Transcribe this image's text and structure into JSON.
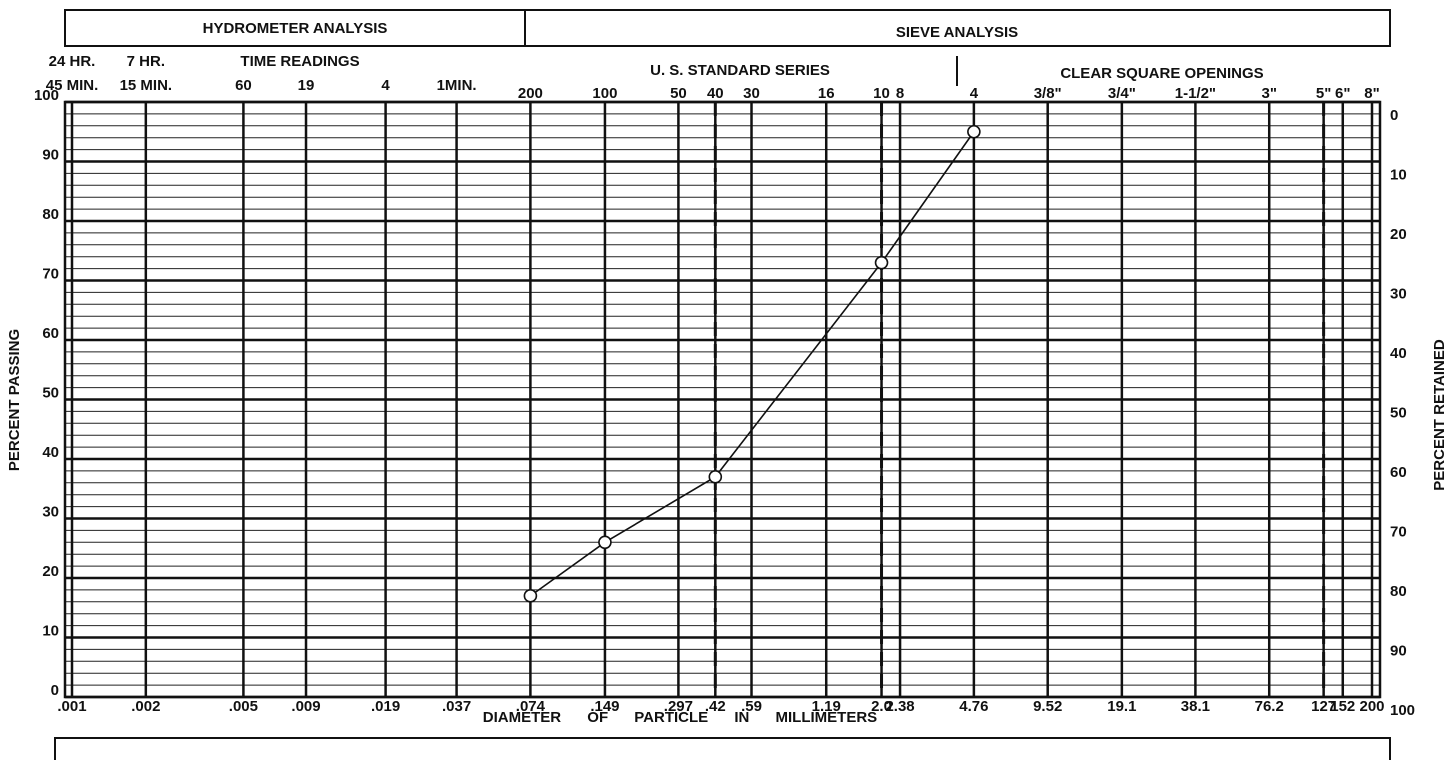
{
  "chart_data": {
    "type": "line",
    "header_left": "HYDROMETER ANALYSIS",
    "header_right": "SIEVE ANALYSIS",
    "time_readings_label": "TIME READINGS",
    "sieve_series_label": "U. S. STANDARD SERIES",
    "openings_label": "CLEAR SQUARE OPENINGS",
    "xlabel": "DIAMETER OF PARTICLE IN MILLIMETERS",
    "ylabel": "PERCENT PASSING",
    "y2label": "PERCENT RETAINED",
    "xscale": "log",
    "xlim": [
      0.001,
      200
    ],
    "xticks": [
      {
        "value": 0.001,
        "label": ".001"
      },
      {
        "value": 0.002,
        "label": ".002"
      },
      {
        "value": 0.005,
        "label": ".005"
      },
      {
        "value": 0.009,
        "label": ".009"
      },
      {
        "value": 0.019,
        "label": ".019"
      },
      {
        "value": 0.037,
        "label": ".037"
      },
      {
        "value": 0.074,
        "label": ".074"
      },
      {
        "value": 0.149,
        "label": ".149"
      },
      {
        "value": 0.297,
        "label": ".297"
      },
      {
        "value": 0.42,
        "label": ".42"
      },
      {
        "value": 0.59,
        "label": ".59"
      },
      1.19,
      {
        "value": 2,
        "label": "2.0"
      },
      2.38,
      4.76,
      9.52,
      19.1,
      38.1,
      76.2,
      127,
      152,
      200
    ],
    "time_ticks": [
      {
        "value": 0.001,
        "lines": [
          "24 HR.",
          "45 MIN."
        ]
      },
      {
        "value": 0.002,
        "lines": [
          "7 HR.",
          "15 MIN."
        ]
      },
      {
        "value": 0.005,
        "lines": [
          "60"
        ]
      },
      {
        "value": 0.009,
        "lines": [
          "19"
        ]
      },
      {
        "value": 0.019,
        "lines": [
          "4"
        ]
      },
      {
        "value": 0.037,
        "lines": [
          "1MIN."
        ]
      }
    ],
    "sieve_ticks": [
      {
        "value": 0.074,
        "label": "200"
      },
      {
        "value": 0.149,
        "label": "100"
      },
      {
        "value": 0.297,
        "label": "50"
      },
      {
        "value": 0.42,
        "label": "40"
      },
      {
        "value": 0.59,
        "label": "30"
      },
      {
        "value": 1.19,
        "label": "16"
      },
      {
        "value": 2,
        "label": "10"
      },
      {
        "value": 2.38,
        "label": "8"
      },
      {
        "value": 4.76,
        "label": "4"
      },
      {
        "value": 9.52,
        "label": "3/8\""
      },
      {
        "value": 19.1,
        "label": "3/4\""
      },
      {
        "value": 38.1,
        "label": "1-1/2\""
      },
      {
        "value": 76.2,
        "label": "3\""
      },
      {
        "value": 127,
        "label": "5\""
      },
      {
        "value": 152,
        "label": "6\""
      },
      {
        "value": 200,
        "label": "8\""
      }
    ],
    "reference_lines_x": [
      0.42,
      2,
      127
    ],
    "ylim": [
      0,
      100
    ],
    "yticks": [
      0,
      10,
      20,
      30,
      40,
      50,
      60,
      70,
      80,
      90,
      100
    ],
    "y2lim": [
      100,
      0
    ],
    "y2ticks": [
      0,
      10,
      20,
      30,
      40,
      50,
      60,
      70,
      80,
      90,
      100
    ],
    "minor_per_major": 5,
    "grid": true,
    "x": [
      0.074,
      0.149,
      0.42,
      2,
      4.76
    ],
    "series": [
      {
        "color": "#111111",
        "values": [
          17,
          26,
          37,
          73,
          95
        ]
      }
    ]
  }
}
